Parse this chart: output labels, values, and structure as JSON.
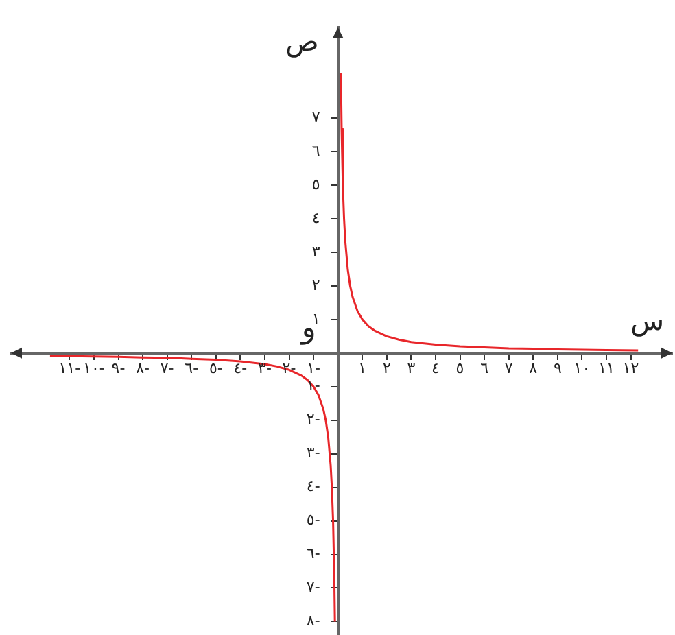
{
  "chart_data": {
    "type": "line",
    "xlabel": "س",
    "ylabel": "ص",
    "annotations": [
      "و"
    ],
    "xlim": [
      -13.4,
      13.7
    ],
    "ylim": [
      -8.4,
      9.7
    ],
    "xticks": [
      {
        "value": -11,
        "label": "١١-"
      },
      {
        "value": -10,
        "label": "١٠-"
      },
      {
        "value": -9,
        "label": "٩-"
      },
      {
        "value": -8,
        "label": "٨-"
      },
      {
        "value": -7,
        "label": "٧-"
      },
      {
        "value": -6,
        "label": "٦-"
      },
      {
        "value": -5,
        "label": "٥-"
      },
      {
        "value": -4,
        "label": "٤-"
      },
      {
        "value": -3,
        "label": "٣-"
      },
      {
        "value": -2,
        "label": "٢-"
      },
      {
        "value": -1,
        "label": "١-"
      },
      {
        "value": 1,
        "label": "١"
      },
      {
        "value": 2,
        "label": "٢"
      },
      {
        "value": 3,
        "label": "٣"
      },
      {
        "value": 4,
        "label": "٤"
      },
      {
        "value": 5,
        "label": "٥"
      },
      {
        "value": 6,
        "label": "٦"
      },
      {
        "value": 7,
        "label": "٧"
      },
      {
        "value": 8,
        "label": "٨"
      },
      {
        "value": 9,
        "label": "٩"
      },
      {
        "value": 10,
        "label": "١٠"
      },
      {
        "value": 11,
        "label": "١١"
      },
      {
        "value": 12,
        "label": "١٢"
      }
    ],
    "yticks": [
      {
        "value": -8,
        "label": "٨-"
      },
      {
        "value": -7,
        "label": "٧-"
      },
      {
        "value": -6,
        "label": "٦-"
      },
      {
        "value": -5,
        "label": "٥-"
      },
      {
        "value": -4,
        "label": "٤-"
      },
      {
        "value": -3,
        "label": "٣-"
      },
      {
        "value": -2,
        "label": "٢-"
      },
      {
        "value": -1,
        "label": "١-"
      },
      {
        "value": 1,
        "label": "١"
      },
      {
        "value": 2,
        "label": "٢"
      },
      {
        "value": 3,
        "label": "٣"
      },
      {
        "value": 4,
        "label": "٤"
      },
      {
        "value": 5,
        "label": "٥"
      },
      {
        "value": 6,
        "label": "٦"
      },
      {
        "value": 7,
        "label": "٧"
      }
    ],
    "grid": false,
    "legend": false,
    "marker": "none",
    "line_style": "solid",
    "series": [
      {
        "color": "#e8262a",
        "x": [
          0.12,
          0.15,
          0.2,
          0.25,
          0.3,
          0.4,
          0.5,
          0.6,
          0.8,
          1,
          1.25,
          1.5,
          2,
          2.5,
          3,
          4,
          5,
          6,
          7,
          8,
          9,
          10,
          11,
          12.3
        ],
        "values": [
          8.33,
          6.67,
          5,
          4,
          3.33,
          2.5,
          2,
          1.67,
          1.25,
          1,
          0.8,
          0.67,
          0.5,
          0.4,
          0.33,
          0.25,
          0.2,
          0.17,
          0.14,
          0.13,
          0.11,
          0.1,
          0.09,
          0.08
        ]
      },
      {
        "color": "#e8262a",
        "x": [
          -11.8,
          -11,
          -10,
          -9,
          -8,
          -7,
          -6,
          -5,
          -4,
          -3,
          -2.5,
          -2,
          -1.5,
          -1.25,
          -1,
          -0.8,
          -0.6,
          -0.5,
          -0.4,
          -0.3,
          -0.25,
          -0.2,
          -0.15,
          -0.125
        ],
        "values": [
          -0.08,
          -0.09,
          -0.1,
          -0.11,
          -0.13,
          -0.14,
          -0.17,
          -0.2,
          -0.25,
          -0.33,
          -0.4,
          -0.5,
          -0.67,
          -0.8,
          -1,
          -1.25,
          -1.67,
          -2,
          -2.5,
          -3.33,
          -4,
          -5,
          -6.67,
          -8
        ]
      }
    ]
  }
}
